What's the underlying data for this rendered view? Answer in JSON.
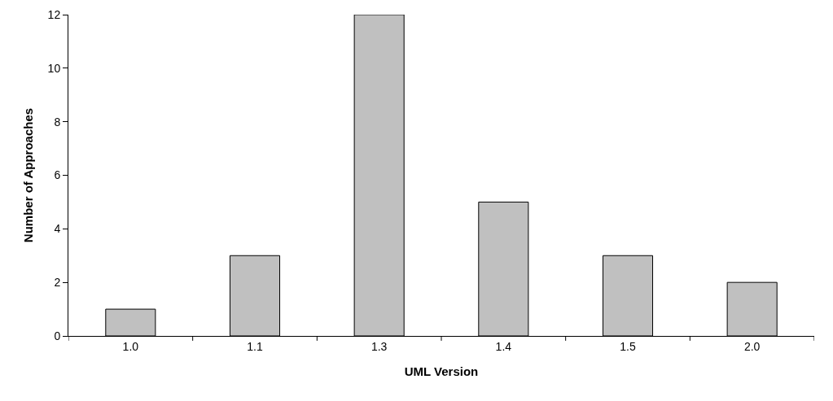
{
  "chart_data": {
    "type": "bar",
    "xlabel": "UML Version",
    "ylabel": "Number of Approaches",
    "categories": [
      "1.0",
      "1.1",
      "1.3",
      "1.4",
      "1.5",
      "2.0"
    ],
    "values": [
      1,
      3,
      12,
      5,
      3,
      2
    ],
    "color": "#c0c0c0",
    "ylim": [
      0,
      12
    ],
    "yticks": [
      0,
      2,
      4,
      6,
      8,
      10,
      12
    ]
  }
}
